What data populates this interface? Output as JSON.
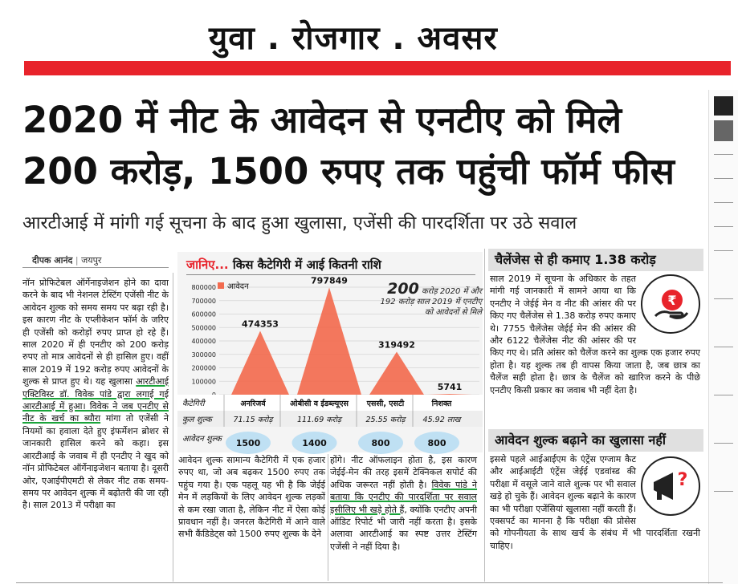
{
  "masthead": {
    "title": "युवा . रोजगार . अवसर"
  },
  "headline": {
    "line1": "2020 में नीट के आवेदन से एनटीए को मिले",
    "line2": "200 करोड़, 1500 रुपए तक पहुंची फॉर्म फीस"
  },
  "subheadline": "आरटीआई में मांगी गई सूचना के बाद हुआ खुलासा, एजेंसी की पारदर्शिता पर उठे सवाल",
  "byline": {
    "author": "दीपक आनंद",
    "city": "जयपुर"
  },
  "column1": {
    "text": "नॉन प्रोफिटेबल ऑर्गेनाइजेशन होने का दावा करने के बाद भी नेशनल टेस्टिंग एजेंसी नीट के आवेदन शुल्क को समय समय पर बढ़ा रही है। इस कारण नीट के एप्लीकेशन फॉर्म के जरिए ही एजेंसी को करोड़ों रुपए प्राप्त हो रहे हैं। साल 2020 में ही एनटीए को 200 करोड़ रुपए तो मात्र आवेदनों से ही हासिल हुए। वहीं साल 2019 में 192 करोड़ रुपए आवेदनों के शुल्क से प्राप्त हुए थे। यह खुलासा",
    "underlined": "आरटीआई एक्टिविस्ट डॉ. विवेक पांडे द्वारा लगाई गई आरटीआई में हुआ। विवेक ने जब एनटीए से नीट के खर्च का ब्यौरा",
    "text2": "मांगा तो एजेंसी ने नियमों का हवाला देते हुए इंफर्मेशन ब्रोशर से जानकारी हासिल करने को कहा। इस आरटीआई के जवाब में ही एनटीए ने खुद को नॉन प्रोफिटेबल ऑर्गेनाइजेशन बताया है। दूसरी ओर, एआईपीएमटी से लेकर नीट तक समय-समय पर आवेदन शुल्क में बढ़ोतरी की जा रही है। साल 2013 में परीक्षा का"
  },
  "column2": {
    "text": "आवेदन शुल्क सामान्य कैटेगिरी में एक हजार रुपए था, जो अब बढ़कर 1500 रुपए तक पहुंच गया है। एक पहलू यह भी है कि जेईई मेन में लड़कियों के लिए आवेदन शुल्क लड़कों से कम रखा जाता है, लेकिन नीट में ऐसा कोई प्रावधान नहीं है। जनरल कैटेगिरी में आने वाले सभी कैंडिडेट्स को 1500 रुपए शुल्क के देने"
  },
  "column3": {
    "text": "होंगे। नीट ऑफलाइन होता है, इस कारण जेईई-मेन की तरह इसमें टेक्निकल सपोर्ट की अधिक जरूरत नहीं होती है।",
    "underlined": "विवेक पांडे ने बताया कि एनटीए की पारदर्शिता पर सवाल इसीलिए भी खड़े होते हैं,",
    "text2": "क्योंकि एनटीए अपनी ऑडिट रिपोर्ट भी जारी नहीं करता है। इसके अलावा आरटीआई का स्पष्ट उत्तर टेस्टिंग एजेंसी ने नहीं दिया है।"
  },
  "sidebar1": {
    "title": "चैलेंजेस से ही कमाए 1.38 करोड़",
    "text": "साल 2019 में सूचना के अधिकार के तहत मांगी गई जानकारी में सामने आया था कि एनटीए ने जेईई मेन व नीट की आंसर की पर किए गए चैलेंजेस से 1.38 करोड़ रुपए कमाए थे। 7755 चैलेंजेस जेईई मेन की आंसर की और 6122 चैलेंजेस नीट की आंसर की पर किए गए थे। प्रति आंसर को चैलेंज करने का शुल्क एक हजार रुपए होता है। यह शुल्क तब ही वापस किया जाता है, जब छात्र का चैलेंज सही होता है। छात्र के चैलेंज को खारिज करने के पीछे एनटीए किसी प्रकार का जवाब भी नहीं देता है।",
    "icon_symbol": "₹"
  },
  "sidebar2": {
    "title": "आवेदन शुल्क बढ़ाने का खुलासा नहीं",
    "text": "इससे पहले आईआईएम के एंट्रेंस एग्जाम कैट और आईआईटी एंट्रेंस जेईई एडवांस्ड की परीक्षा में वसूले जाने वाले शुल्क पर भी सवाल खड़े हो चुके हैं। आवेदन शुल्क बढ़ाने के कारण का भी परीक्षा एजेंसियां खुलासा नहीं करती हैं। एक्सपर्ट का मानना है कि परीक्षा की प्रोसेस को गोपनीयता के साथ खर्च के संबंध में भी पारदर्शिता रखनी चाहिए।",
    "icon_symbol": "?"
  },
  "infographic": {
    "title_prefix": "जानिए...",
    "title_rest": "किस कैटेगिरी में आई कितनी राशि",
    "note_big": "200",
    "note_text1": "करोड़ 2020 में और",
    "note_text2": "192 करोड़ साल 2019 में एनटीए",
    "note_text3": "को आवेदनों से मिले",
    "legend": "आवेदन",
    "row_category_label": "कैटेगिरी",
    "row_fee_label": "कुल शुल्क",
    "row_app_fee_label": "आवेदन शुल्क",
    "fees": [
      "71.15 करोड़",
      "111.69 करोड़",
      "25.55 करोड़",
      "45.92 लाख"
    ],
    "app_fees": [
      "1500",
      "1400",
      "800",
      "800"
    ],
    "colors": {
      "peak": "#f26b4f",
      "accent": "#e8232b",
      "pill": "#bfe0f3"
    }
  },
  "chart_data": {
    "type": "area",
    "title": "किस कैटेगिरी में आई कितनी राशि",
    "categories": [
      "अनरिजर्व",
      "ओबीसी व ईडब्ल्यूएस",
      "एससी, एसटी",
      "निशक्त"
    ],
    "series": [
      {
        "name": "आवेदन",
        "values": [
          474353,
          797849,
          319492,
          5741
        ]
      }
    ],
    "ylim": [
      0,
      800000
    ],
    "yticks": [
      0,
      100000,
      200000,
      300000,
      400000,
      500000,
      600000,
      700000,
      800000
    ],
    "legend": "top-left",
    "grid": true
  }
}
